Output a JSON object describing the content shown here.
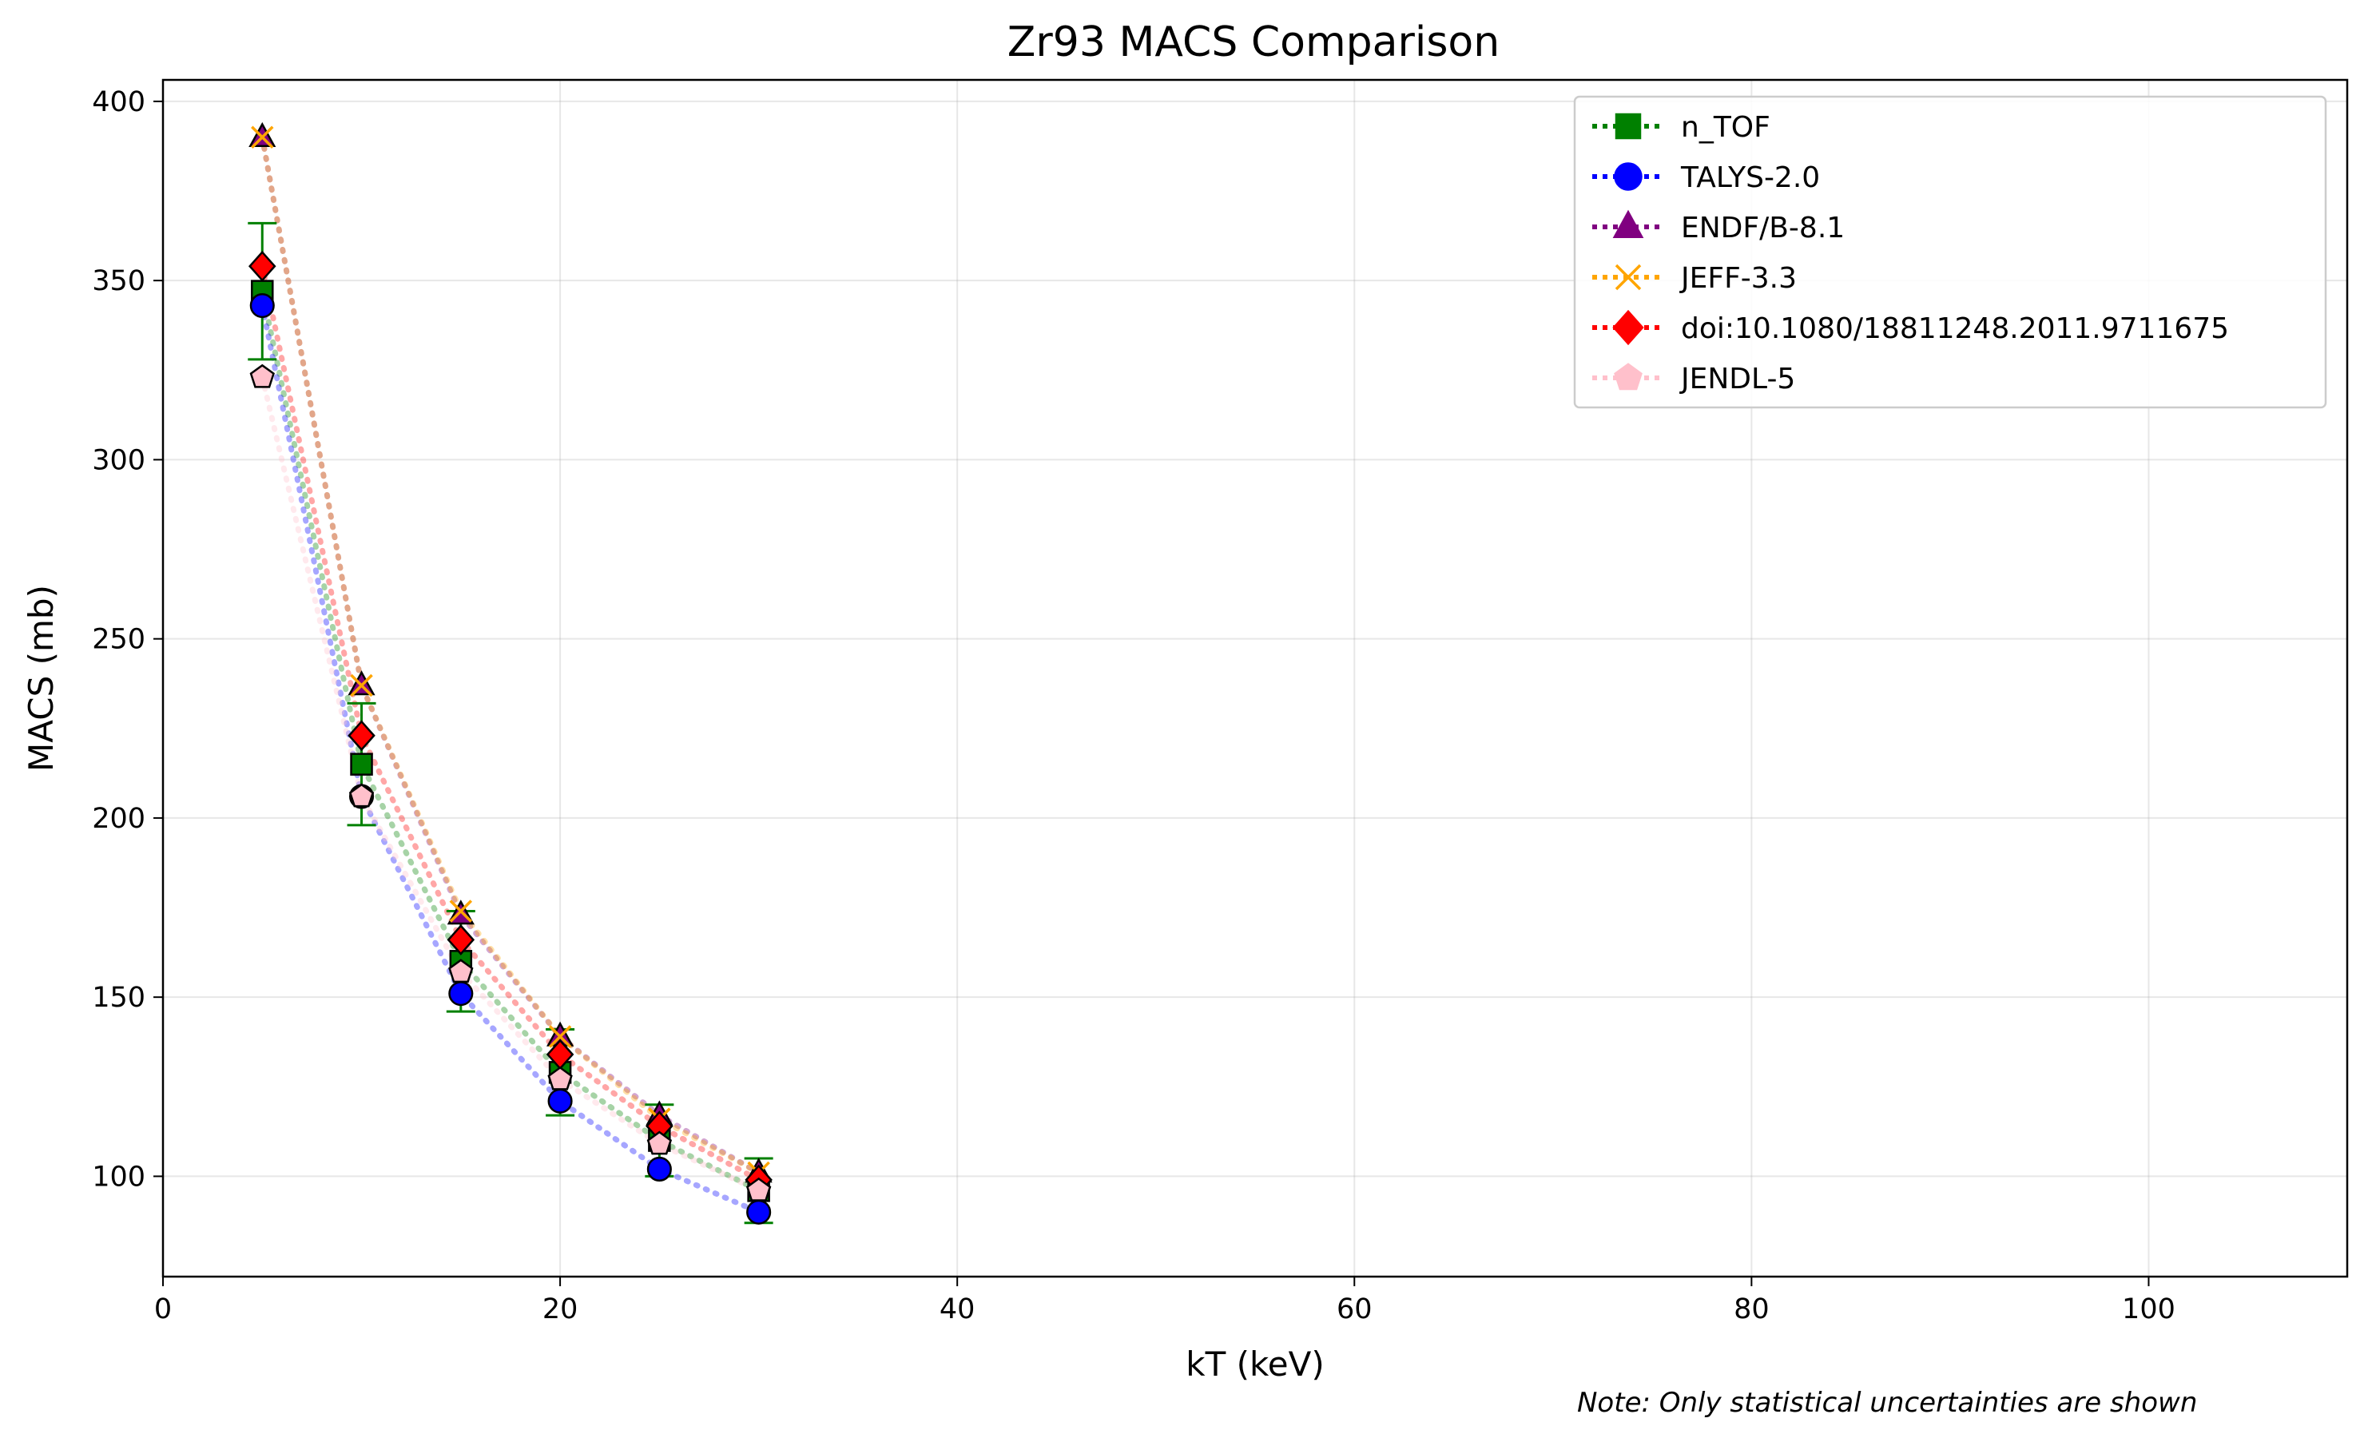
{
  "note": "Note: Only statistical uncertainties are shown",
  "chart_data": {
    "type": "scatter",
    "title": "Zr93 MACS Comparison",
    "xlabel": "kT (keV)",
    "ylabel": "MACS (mb)",
    "xlim": [
      0,
      110
    ],
    "ylim": [
      72,
      406
    ],
    "xticks": [
      0,
      20,
      40,
      60,
      80,
      100
    ],
    "yticks": [
      100,
      150,
      200,
      250,
      300,
      350,
      400
    ],
    "grid": true,
    "legend_position": "top-right",
    "x": [
      5,
      10,
      15,
      20,
      25,
      30
    ],
    "series": [
      {
        "name": "n_TOF",
        "color": "#008000",
        "marker": "square",
        "values": [
          347,
          215,
          160,
          129,
          110,
          96
        ],
        "errors": [
          19,
          17,
          14,
          12,
          10,
          9
        ]
      },
      {
        "name": "TALYS-2.0",
        "color": "#0000ff",
        "marker": "circle",
        "values": [
          343,
          206,
          151,
          121,
          102,
          90
        ]
      },
      {
        "name": "ENDF/B-8.1",
        "color": "#800080",
        "marker": "triangle",
        "values": [
          390,
          237,
          173,
          139,
          117,
          101
        ]
      },
      {
        "name": "JEFF-3.3",
        "color": "#ffa500",
        "marker": "x",
        "values": [
          390,
          237,
          174,
          139,
          116,
          101
        ]
      },
      {
        "name": "doi:10.1080/18811248.2011.9711675",
        "color": "#ff0000",
        "marker": "diamond",
        "values": [
          354,
          223,
          166,
          134,
          114,
          99
        ]
      },
      {
        "name": "JENDL-5",
        "color": "#ffc0cb",
        "marker": "pentagon",
        "values": [
          323,
          206,
          157,
          127,
          109,
          96
        ]
      }
    ]
  }
}
